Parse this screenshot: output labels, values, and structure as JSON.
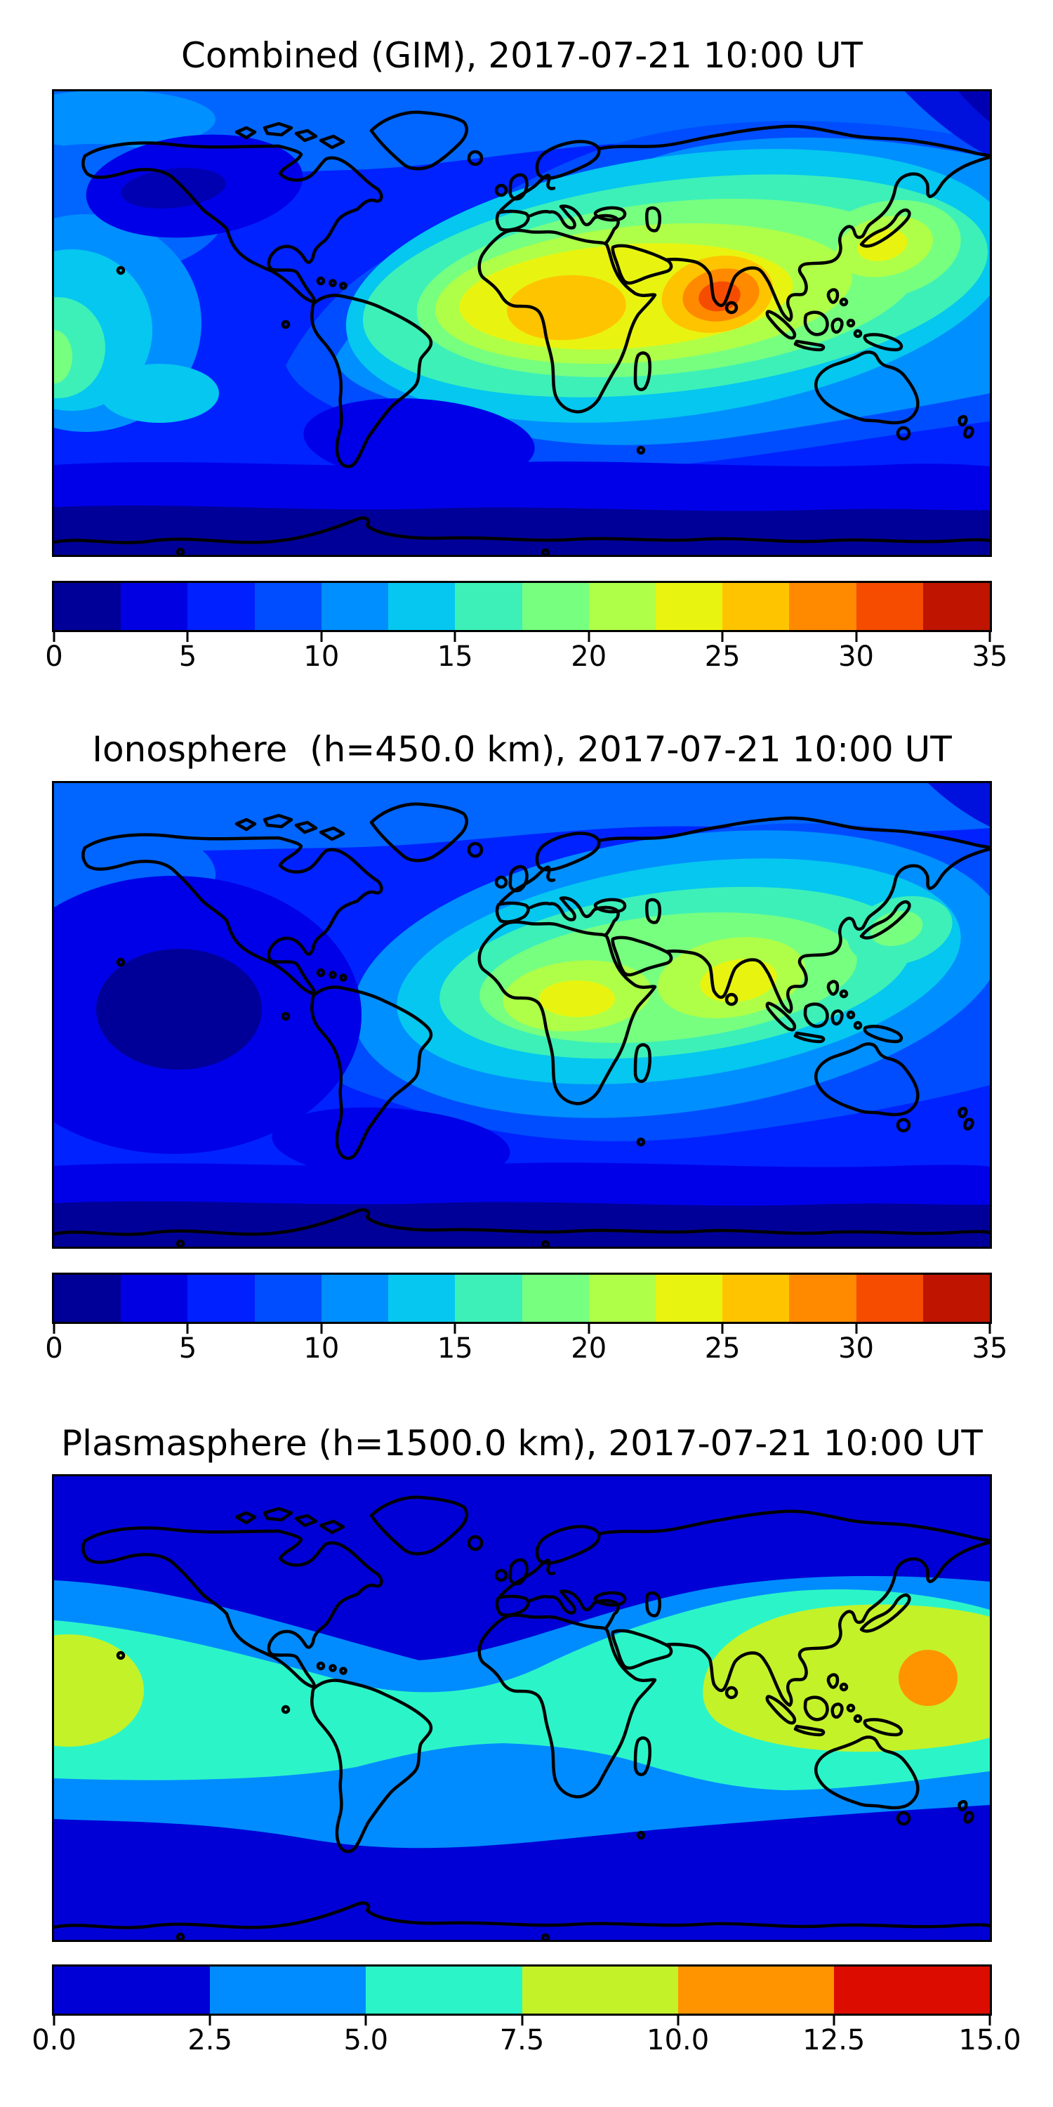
{
  "figure": {
    "panels": [
      {
        "title": "Combined (GIM), 2017-07-21 10:00 UT",
        "colorbar": {
          "min": 0,
          "max": 35,
          "tick_labels": [
            "0",
            "5",
            "10",
            "15",
            "20",
            "25",
            "30",
            "35"
          ],
          "tick_values": [
            0,
            5,
            10,
            15,
            20,
            25,
            30,
            35
          ],
          "segment_colors": [
            "#000099",
            "#0000E3",
            "#0020FF",
            "#004DFF",
            "#008FFF",
            "#05C7EF",
            "#3DF0B8",
            "#77FF80",
            "#AFFF48",
            "#E8F410",
            "#FFC400",
            "#FF8A00",
            "#F64C00",
            "#BE1400"
          ]
        }
      },
      {
        "title": "Ionosphere  (h=450.0 km), 2017-07-21 10:00 UT",
        "colorbar": {
          "min": 0,
          "max": 35,
          "tick_labels": [
            "0",
            "5",
            "10",
            "15",
            "20",
            "25",
            "30",
            "35"
          ],
          "tick_values": [
            0,
            5,
            10,
            15,
            20,
            25,
            30,
            35
          ],
          "segment_colors": [
            "#000099",
            "#0000E3",
            "#0020FF",
            "#004DFF",
            "#008FFF",
            "#05C7EF",
            "#3DF0B8",
            "#77FF80",
            "#AFFF48",
            "#E8F410",
            "#FFC400",
            "#FF8A00",
            "#F64C00",
            "#BE1400"
          ]
        }
      },
      {
        "title": "Plasmasphere (h=1500.0 km), 2017-07-21 10:00 UT",
        "colorbar": {
          "min": 0,
          "max": 15,
          "tick_labels": [
            "0.0",
            "2.5",
            "5.0",
            "7.5",
            "10.0",
            "12.5",
            "15.0"
          ],
          "tick_values": [
            0,
            2.5,
            5,
            7.5,
            10,
            12.5,
            15
          ],
          "segment_colors": [
            "#0000D6",
            "#008CFF",
            "#2BF5C8",
            "#C3F229",
            "#FF9400",
            "#DC0D00"
          ]
        }
      }
    ]
  },
  "chart_data": [
    {
      "type": "heatmap",
      "subtype": "filled-contour world map (equirectangular, lon -180..180, lat -90..90, coastlines overlaid)",
      "title": "Combined (GIM), 2017-07-21 10:00 UT",
      "colorbar": {
        "orientation": "horizontal",
        "min": 0,
        "max": 35,
        "levels": 14,
        "level_step": 2.5,
        "tick_labels": [
          "0",
          "5",
          "10",
          "15",
          "20",
          "25",
          "30",
          "35"
        ]
      },
      "features": [
        {
          "label": "main daytime maximum",
          "approx_lon": 77,
          "approx_lat": 10,
          "value_range": "30-32.5 (innermost deep-orange core over southern India / Bay of Bengal)"
        },
        {
          "label": "secondary gold lobe",
          "approx_lon": 15,
          "approx_lat": 10,
          "value_range": "25-27.5 (over central Africa / Sahel)"
        },
        {
          "label": "broad warm band",
          "approx_lon": 60,
          "approx_lat": 10,
          "value_range": "15-25 (yellow-green band Africa to SE Asia)"
        },
        {
          "label": "Japan / west Pacific spot",
          "approx_lon": 140,
          "approx_lat": 28,
          "value_range": "20-25 (yellow patch)"
        },
        {
          "label": "left Pacific equatorial patch",
          "approx_lon": -178,
          "approx_lat": -12,
          "value_range": "12.5-20 (cyan/turquoise/green at west edge)"
        },
        {
          "label": "North America night minimum",
          "approx_lon": -135,
          "approx_lat": 52,
          "value_range": "0-2.5 (navy patch)"
        },
        {
          "label": "high-southern-latitude band",
          "approx_lat": -70,
          "value_range": "0-5 (dark blue band along bottom)"
        },
        {
          "label": "top-right corner minimum",
          "approx_lon": 175,
          "approx_lat": 85,
          "value_range": "0-5 (dark wedge)"
        }
      ]
    },
    {
      "type": "heatmap",
      "subtype": "filled-contour world map (equirectangular, lon -180..180, lat -90..90, coastlines overlaid)",
      "title": "Ionosphere  (h=450.0 km), 2017-07-21 10:00 UT",
      "colorbar": {
        "orientation": "horizontal",
        "min": 0,
        "max": 35,
        "levels": 14,
        "level_step": 2.5,
        "tick_labels": [
          "0",
          "5",
          "10",
          "15",
          "20",
          "25",
          "30",
          "35"
        ]
      },
      "features": [
        {
          "label": "main maximum",
          "approx_lon": 80,
          "approx_lat": 12,
          "value_range": "22.5-25 (yellow core near India)"
        },
        {
          "label": "secondary maximum",
          "approx_lon": 20,
          "approx_lat": 8,
          "value_range": "22.5-25 (yellow core over central Africa)"
        },
        {
          "label": "warm band",
          "approx_lon": 50,
          "approx_lat": 12,
          "value_range": "12.5-22.5 (turquoise/green band Africa to SE Asia)"
        },
        {
          "label": "Japan spot",
          "approx_lon": 140,
          "approx_lat": 32,
          "value_range": "15-20 (pale green patch)"
        },
        {
          "label": "Pacific night minimum",
          "approx_lon": -140,
          "approx_lat": 0,
          "value_range": "0-2.5 (navy patch inside large dark-blue region)"
        },
        {
          "label": "high-southern-latitude band",
          "approx_lat": -72,
          "value_range": "0-5 (dark band along bottom)"
        }
      ]
    },
    {
      "type": "heatmap",
      "subtype": "filled-contour world map (equirectangular, lon -180..180, lat -90..90, coastlines overlaid)",
      "title": "Plasmasphere (h=1500.0 km), 2017-07-21 10:00 UT",
      "colorbar": {
        "orientation": "horizontal",
        "min": 0,
        "max": 15,
        "levels": 6,
        "level_step": 2.5,
        "tick_labels": [
          "0.0",
          "2.5",
          "5.0",
          "7.5",
          "10.0",
          "12.5",
          "15.0"
        ]
      },
      "features": [
        {
          "label": "maximum",
          "approx_lon": 156,
          "approx_lat": 11,
          "value_range": "10-12.5 (orange circular blob east of Philippines)"
        },
        {
          "label": "west Pacific yellow-green blob",
          "approx_lon": 110,
          "approx_lat": 0,
          "value_range": "7.5-10 (broad blob India to west Pacific)"
        },
        {
          "label": "left-edge yellow-green blob",
          "approx_lon": -174,
          "approx_lat": 7,
          "value_range": "7.5-10"
        },
        {
          "label": "equatorial turquoise band",
          "approx_lat": 0,
          "value_range": "5-7.5 (full-width band, pinched over Atlantic)"
        },
        {
          "label": "mid-latitude light-blue band",
          "approx_lat": 30,
          "value_range": "2.5-5 (both hemispheres)"
        },
        {
          "label": "polar background",
          "approx_lat": 70,
          "value_range": "0-2.5 (dark blue top and bottom)"
        }
      ]
    }
  ]
}
